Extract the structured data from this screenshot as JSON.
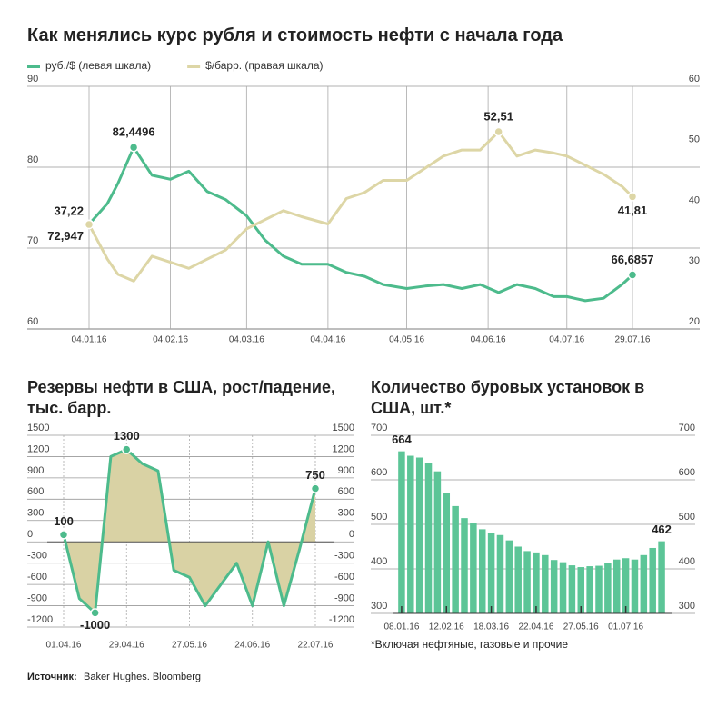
{
  "chart_data": [
    {
      "type": "line",
      "title": "Как менялись курс рубля и стоимость нефти с начала года",
      "x": [
        "04.01.16",
        "11.01.16",
        "15.01.16",
        "21.01.16",
        "28.01.16",
        "04.02.16",
        "11.02.16",
        "18.02.16",
        "25.02.16",
        "04.03.16",
        "11.03.16",
        "18.03.16",
        "25.03.16",
        "04.04.16",
        "11.04.16",
        "18.04.16",
        "25.04.16",
        "04.05.16",
        "11.05.16",
        "18.05.16",
        "25.05.16",
        "01.06.16",
        "08.06.16",
        "15.06.16",
        "22.06.16",
        "29.06.16",
        "04.07.16",
        "11.07.16",
        "18.07.16",
        "25.07.16",
        "29.07.16"
      ],
      "series": [
        {
          "name": "руб./$ (левая шкала)",
          "color": "#4dbb8c",
          "values": [
            72.947,
            75.5,
            78,
            82.4496,
            79,
            78.5,
            79.5,
            77,
            76,
            74,
            71,
            69,
            68,
            68,
            67,
            66.5,
            65.5,
            65,
            65.3,
            65.5,
            65,
            65.5,
            64.5,
            65.5,
            65,
            64,
            64,
            63.5,
            63.8,
            65.5,
            66.6857
          ],
          "value_labels": [
            "72,947",
            null,
            null,
            "82,4496",
            null,
            null,
            null,
            null,
            null,
            null,
            null,
            null,
            null,
            null,
            null,
            null,
            null,
            null,
            null,
            null,
            null,
            null,
            null,
            null,
            null,
            null,
            null,
            null,
            null,
            null,
            "66,6857"
          ]
        },
        {
          "name": "$/барр. (правая шкала)",
          "color": "#ddd6a6",
          "axis": "y2",
          "values": [
            37.22,
            31.5,
            29,
            27.9,
            32,
            31,
            30,
            31.5,
            33,
            36.5,
            38,
            39.5,
            38.5,
            37.3,
            41.5,
            42.5,
            44.5,
            44.5,
            46.5,
            48.5,
            49.5,
            49.5,
            52.51,
            48.5,
            49.5,
            49,
            48.5,
            47,
            45.5,
            43.5,
            41.81
          ],
          "value_labels": [
            "37,22",
            null,
            null,
            null,
            null,
            null,
            null,
            null,
            null,
            null,
            null,
            null,
            null,
            null,
            null,
            null,
            null,
            null,
            null,
            null,
            null,
            null,
            "52,51",
            null,
            null,
            null,
            null,
            null,
            null,
            null,
            "41,81"
          ]
        }
      ],
      "xticks": [
        "04.01.16",
        "04.02.16",
        "04.03.16",
        "04.04.16",
        "04.05.16",
        "04.06.16",
        "04.07.16",
        "29.07.16"
      ],
      "ylim": [
        60,
        90
      ],
      "yticks": [
        60,
        70,
        80,
        90
      ],
      "y2lim": [
        20,
        60
      ],
      "y2ticks": [
        20,
        30,
        40,
        50,
        60
      ],
      "legend": "top-left",
      "grid": true
    },
    {
      "type": "area",
      "title": "Резервы нефти в США, рост/падение, тыс. барр.",
      "x": [
        "01.04.16",
        "08.04.16",
        "15.04.16",
        "22.04.16",
        "29.04.16",
        "06.05.16",
        "13.05.16",
        "20.05.16",
        "27.05.16",
        "03.06.16",
        "10.06.16",
        "17.06.16",
        "24.06.16",
        "01.07.16",
        "08.07.16",
        "15.07.16",
        "22.07.16"
      ],
      "values": [
        100,
        -800,
        -1000,
        1200,
        1300,
        1100,
        1000,
        -400,
        -500,
        -900,
        -600,
        -300,
        -900,
        0,
        -900,
        -100,
        750
      ],
      "value_labels": [
        "100",
        null,
        "-1000",
        null,
        "1300",
        null,
        null,
        null,
        null,
        null,
        null,
        null,
        null,
        null,
        null,
        null,
        "750"
      ],
      "color": "#4dbb8c",
      "fill": "#d9d2a4",
      "xticks": [
        "01.04.16",
        "29.04.16",
        "27.05.16",
        "24.06.16",
        "22.07.16"
      ],
      "ylim": [
        -1200,
        1500
      ],
      "yticks": [
        -1200,
        -900,
        -600,
        -300,
        0,
        300,
        600,
        900,
        1200,
        1500
      ],
      "grid": true
    },
    {
      "type": "bar",
      "title": "Количество буровых установок в США, шт.*",
      "categories": [
        "08.01.16",
        "15.01.16",
        "22.01.16",
        "29.01.16",
        "05.02.16",
        "12.02.16",
        "19.02.16",
        "26.02.16",
        "04.03.16",
        "11.03.16",
        "18.03.16",
        "25.03.16",
        "01.04.16",
        "08.04.16",
        "15.04.16",
        "22.04.16",
        "29.04.16",
        "06.05.16",
        "13.05.16",
        "20.05.16",
        "27.05.16",
        "03.06.16",
        "10.06.16",
        "17.06.16",
        "24.06.16",
        "01.07.16",
        "08.07.16",
        "15.07.16",
        "22.07.16",
        "29.07.16"
      ],
      "values": [
        664,
        654,
        650,
        637,
        619,
        571,
        541,
        514,
        502,
        489,
        480,
        476,
        464,
        450,
        440,
        437,
        431,
        420,
        415,
        408,
        404,
        406,
        407,
        414,
        421,
        424,
        421,
        431,
        447,
        462
      ],
      "value_labels": [
        "664",
        null,
        null,
        null,
        null,
        null,
        null,
        null,
        null,
        null,
        null,
        null,
        null,
        null,
        null,
        null,
        null,
        null,
        null,
        null,
        null,
        null,
        null,
        null,
        null,
        null,
        null,
        null,
        null,
        "462"
      ],
      "color": "#5cc597",
      "xticks": [
        "08.01.16",
        "12.02.16",
        "18.03.16",
        "22.04.16",
        "27.05.16",
        "01.07.16"
      ],
      "ylim": [
        300,
        700
      ],
      "yticks": [
        300,
        400,
        500,
        600,
        700
      ],
      "grid": true,
      "footnote": "*Включая нефтяные, газовые и прочие"
    }
  ],
  "source_label": "Источник:",
  "source_text": "Baker Hughes. Bloomberg"
}
